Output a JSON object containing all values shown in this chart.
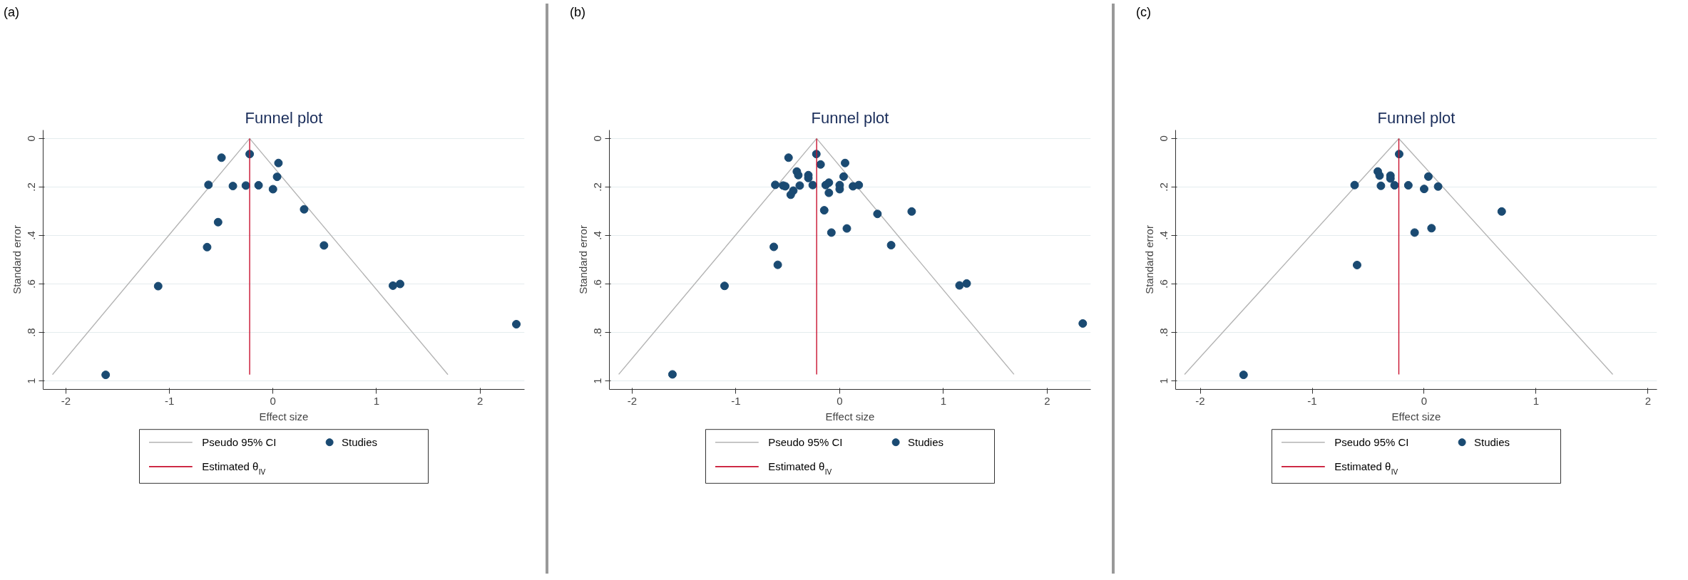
{
  "chart_data": [
    {
      "type": "scatter",
      "title": "Funnel plot",
      "xlabel": "Effect size",
      "ylabel": "Standard error",
      "annotations": [
        "(a)"
      ],
      "xlim": [
        -2.22,
        2.43
      ],
      "ylim": [
        1.035,
        -0.035
      ],
      "xticks": [
        -2,
        -1,
        0,
        1,
        2
      ],
      "yticks": [
        0,
        {
          "value": 0.2,
          "label": ".2"
        },
        {
          "value": 0.4,
          "label": ".4"
        },
        {
          "value": 0.6,
          "label": ".6"
        },
        {
          "value": 0.8,
          "label": ".8"
        },
        1
      ],
      "grid": "y",
      "legend": "bottom",
      "series": [
        {
          "name": "Pseudo 95% CI",
          "type": "line",
          "color": "#b4b4b4",
          "x": [
            -2.13,
            -0.225,
            1.69
          ],
          "values": [
            0.974,
            0,
            0.974
          ]
        },
        {
          "name": "Studies",
          "marker": "circle",
          "color": "#1a4a72",
          "x": [
            -0.497,
            -0.225,
            0.053,
            0.04,
            -0.623,
            -0.387,
            -0.262,
            -0.139,
            0.0,
            0.301,
            -0.53,
            -0.636,
            0.493,
            -1.109,
            1.159,
            1.228,
            2.351,
            -1.616
          ],
          "values": [
            0.079,
            0.064,
            0.101,
            0.158,
            0.191,
            0.196,
            0.194,
            0.193,
            0.209,
            0.292,
            0.345,
            0.448,
            0.441,
            0.609,
            0.607,
            0.6,
            0.766,
            0.975
          ]
        },
        {
          "name": "Estimated θ$_{IV}$",
          "type": "line",
          "color": "#c8102e",
          "x": [
            -0.225,
            -0.225
          ],
          "values": [
            0,
            0.974
          ]
        }
      ]
    },
    {
      "type": "scatter",
      "title": "Funnel plot",
      "xlabel": "Effect size",
      "ylabel": "Standard error",
      "annotations": [
        "(b)"
      ],
      "xlim": [
        -2.22,
        2.42
      ],
      "ylim": [
        1.035,
        -0.035
      ],
      "xticks": [
        -2,
        -1,
        0,
        1,
        2
      ],
      "yticks": [
        0,
        {
          "value": 0.2,
          "label": ".2"
        },
        {
          "value": 0.4,
          "label": ".4"
        },
        {
          "value": 0.6,
          "label": ".6"
        },
        {
          "value": 0.8,
          "label": ".8"
        },
        1
      ],
      "grid": "y",
      "legend": "bottom",
      "series": [
        {
          "name": "Pseudo 95% CI",
          "type": "line",
          "color": "#b4b4b4",
          "x": [
            -2.13,
            -0.222,
            1.68
          ],
          "values": [
            0.973,
            0,
            0.973
          ]
        },
        {
          "name": "Studies",
          "marker": "circle",
          "color": "#1a4a72",
          "x": [
            -0.493,
            -0.225,
            -0.184,
            0.052,
            -0.413,
            -0.399,
            -0.302,
            -0.302,
            0.038,
            -0.621,
            -0.545,
            -0.524,
            -0.447,
            -0.472,
            -0.385,
            -0.26,
            -0.135,
            -0.104,
            -0.104,
            0.0,
            0.0,
            0.128,
            0.184,
            -0.149,
            0.364,
            0.694,
            0.069,
            -0.08,
            0.496,
            -0.635,
            -0.597,
            -1.11,
            1.155,
            1.224,
            2.343,
            -1.612
          ],
          "values": [
            0.079,
            0.064,
            0.107,
            0.101,
            0.136,
            0.151,
            0.151,
            0.163,
            0.157,
            0.191,
            0.194,
            0.197,
            0.215,
            0.232,
            0.194,
            0.192,
            0.192,
            0.182,
            0.224,
            0.192,
            0.209,
            0.197,
            0.192,
            0.296,
            0.311,
            0.301,
            0.371,
            0.388,
            0.44,
            0.447,
            0.521,
            0.608,
            0.606,
            0.598,
            0.763,
            0.973
          ]
        },
        {
          "name": "Estimated θ$_{IV}$",
          "type": "line",
          "color": "#c8102e",
          "x": [
            -0.222,
            -0.222
          ],
          "values": [
            0,
            0.973
          ]
        }
      ]
    },
    {
      "type": "scatter",
      "title": "Funnel plot",
      "xlabel": "Effect size",
      "ylabel": "Standard error",
      "annotations": [
        "(c)"
      ],
      "xlim": [
        -2.22,
        2.08
      ],
      "ylim": [
        1.035,
        -0.035
      ],
      "xticks": [
        -2,
        -1,
        0,
        1,
        2
      ],
      "yticks": [
        0,
        {
          "value": 0.2,
          "label": ".2"
        },
        {
          "value": 0.4,
          "label": ".4"
        },
        {
          "value": 0.6,
          "label": ".6"
        },
        {
          "value": 0.8,
          "label": ".8"
        },
        1
      ],
      "grid": "y",
      "legend": "bottom",
      "series": [
        {
          "name": "Pseudo 95% CI",
          "type": "line",
          "color": "#b4b4b4",
          "x": [
            -2.14,
            -0.226,
            1.685
          ],
          "values": [
            0.973,
            0,
            0.973
          ]
        },
        {
          "name": "Studies",
          "marker": "circle",
          "color": "#1a4a72",
          "x": [
            -0.223,
            -0.414,
            -0.398,
            -0.301,
            -0.301,
            0.038,
            -0.621,
            -0.386,
            -0.264,
            -0.141,
            0.0,
            0.125,
            0.693,
            0.066,
            -0.085,
            -0.599,
            -1.613
          ],
          "values": [
            0.064,
            0.136,
            0.153,
            0.153,
            0.165,
            0.157,
            0.192,
            0.195,
            0.193,
            0.193,
            0.208,
            0.198,
            0.301,
            0.37,
            0.388,
            0.522,
            0.975
          ]
        },
        {
          "name": "Estimated θ$_{IV}$",
          "type": "line",
          "color": "#c8102e",
          "x": [
            -0.226,
            -0.226
          ],
          "values": [
            0,
            0.973
          ]
        }
      ]
    }
  ]
}
